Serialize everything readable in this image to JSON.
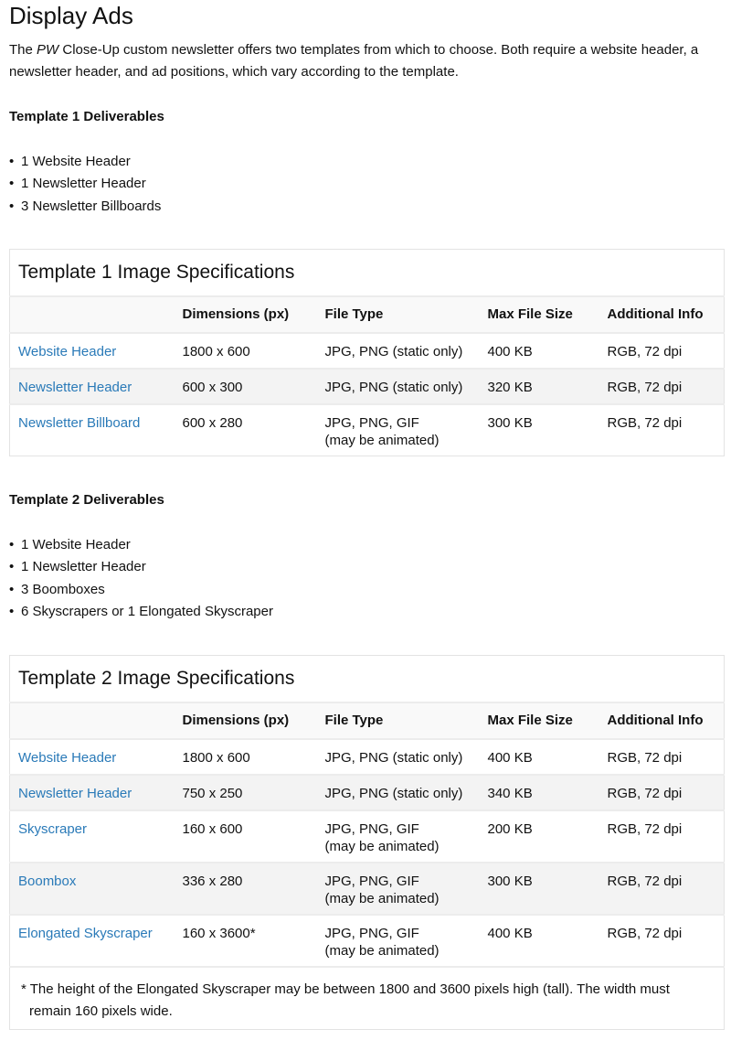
{
  "page": {
    "title": "Display Ads",
    "intro_em": "PW",
    "intro_before": "The ",
    "intro_after": " Close-Up custom newsletter offers two templates from which to choose. Both require a website header, a newsletter header, and ad positions, which vary according to the template."
  },
  "template1": {
    "deliverables_title": "Template 1 Deliverables",
    "deliverables": [
      "1 Website Header",
      "1 Newsletter Header",
      "3 Newsletter Billboards"
    ],
    "table_caption": "Template 1 Image Specifications",
    "columns": [
      "",
      "Dimensions (px)",
      "File Type",
      "Max File Size",
      "Additional Info"
    ],
    "rows": [
      {
        "name": "Website Header",
        "dimensions": "1800 x 600",
        "file_type": "JPG, PNG (static only)",
        "file_type_note": "",
        "max_size": "400 KB",
        "info": "RGB, 72 dpi"
      },
      {
        "name": "Newsletter Header",
        "dimensions": "600 x 300",
        "file_type": "JPG, PNG (static only)",
        "file_type_note": "",
        "max_size": "320 KB",
        "info": "RGB, 72 dpi"
      },
      {
        "name": "Newsletter Billboard",
        "dimensions": "600 x 280",
        "file_type": "JPG, PNG, GIF",
        "file_type_note": "(may be animated)",
        "max_size": "300 KB",
        "info": "RGB, 72 dpi"
      }
    ]
  },
  "template2": {
    "deliverables_title": "Template 2 Deliverables",
    "deliverables": [
      "1 Website Header",
      "1 Newsletter Header",
      "3 Boomboxes",
      "6 Skyscrapers or 1 Elongated Skyscraper"
    ],
    "table_caption": "Template 2 Image Specifications",
    "columns": [
      "",
      "Dimensions (px)",
      "File Type",
      "Max File Size",
      "Additional Info"
    ],
    "rows": [
      {
        "name": "Website Header",
        "dimensions": "1800 x 600",
        "file_type": "JPG, PNG (static only)",
        "file_type_note": "",
        "max_size": "400 KB",
        "info": "RGB, 72 dpi"
      },
      {
        "name": "Newsletter Header",
        "dimensions": "750 x 250",
        "file_type": "JPG, PNG (static only)",
        "file_type_note": "",
        "max_size": "340 KB",
        "info": "RGB, 72 dpi"
      },
      {
        "name": "Skyscraper",
        "dimensions": "160 x 600",
        "file_type": "JPG, PNG, GIF",
        "file_type_note": "(may be animated)",
        "max_size": "200 KB",
        "info": "RGB, 72 dpi"
      },
      {
        "name": "Boombox",
        "dimensions": "336 x 280",
        "file_type": "JPG, PNG, GIF",
        "file_type_note": "(may be animated)",
        "max_size": "300 KB",
        "info": "RGB, 72 dpi"
      },
      {
        "name": "Elongated Skyscraper",
        "dimensions": "160 x 3600*",
        "file_type": "JPG, PNG, GIF",
        "file_type_note": "(may be animated)",
        "max_size": "400 KB",
        "info": "RGB, 72 dpi"
      }
    ],
    "footnote": "* The height of the Elongated Skyscraper may be between 1800 and 3600 pixels high (tall). The width must remain 160 pixels wide."
  },
  "colors": {
    "link": "#2a7ab8",
    "header_bg": "#f9f9f9",
    "alt_row_bg": "#f3f3f3",
    "border": "#e3e3e3"
  }
}
